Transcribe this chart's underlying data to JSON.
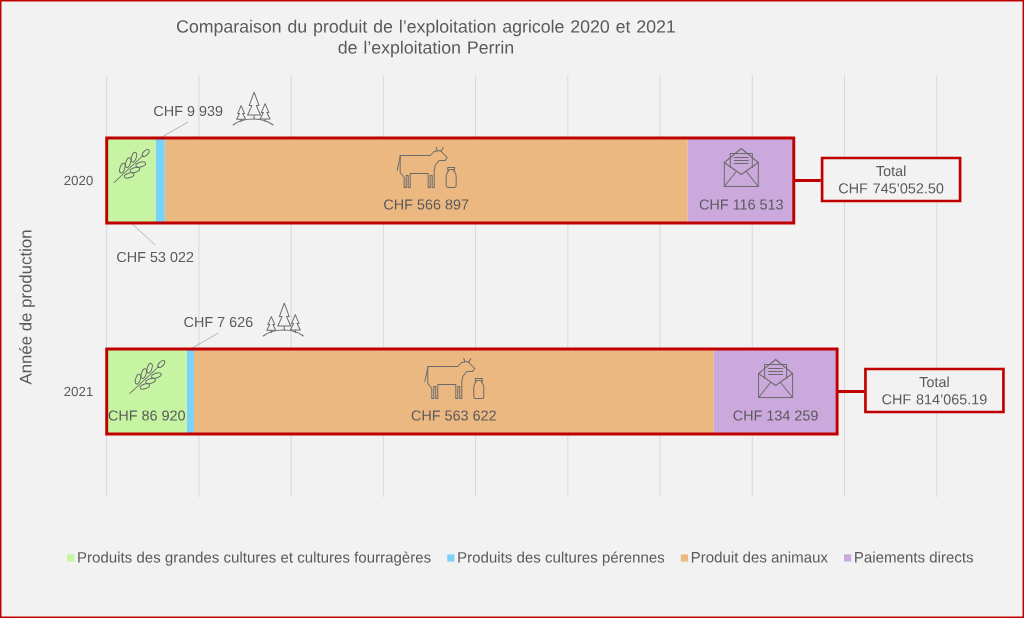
{
  "chart_data": {
    "type": "bar",
    "orientation": "horizontal",
    "stacked": true,
    "title": "Comparaison du produit de l’exploitation agricole 2020 et 2021\nde l’exploitation Perrin",
    "ylabel": "Année de production",
    "categories": [
      "2020",
      "2021"
    ],
    "series": [
      {
        "name": "Produits des grandes cultures et cultures fourragères",
        "color": "#c6f4a2",
        "values": [
          53022,
          86920
        ],
        "value_labels": [
          "CHF 53 022",
          "CHF 86 920"
        ]
      },
      {
        "name": "Produits des cultures pérennes",
        "color": "#79d3f9",
        "values": [
          9939,
          7626
        ],
        "value_labels": [
          "CHF 9 939",
          "CHF 7 626"
        ]
      },
      {
        "name": "Produit des animaux",
        "color": "#ecb882",
        "values": [
          566897,
          563622
        ],
        "value_labels": [
          "CHF 566 897",
          "CHF 563 622"
        ]
      },
      {
        "name": "Paiements directs",
        "color": "#cca9dc",
        "values": [
          116513,
          134259
        ],
        "value_labels": [
          "CHF 116 513",
          "CHF 134 259"
        ]
      }
    ],
    "annotations": [
      {
        "text": "Total\nCHF 745’052.50",
        "x": 745000,
        "y": "2020"
      },
      {
        "text": "Total\nCHF 814’065.19",
        "x": 792000,
        "y": "2021"
      }
    ],
    "xlim": [
      0,
      900000
    ],
    "xticks": [
      {
        "value": 0,
        "label": null
      },
      {
        "value": 100000,
        "label": null
      },
      {
        "value": 200000,
        "label": null
      },
      {
        "value": 300000,
        "label": null
      },
      {
        "value": 400000,
        "label": null
      },
      {
        "value": 500000,
        "label": null
      },
      {
        "value": 600000,
        "label": null
      },
      {
        "value": 700000,
        "label": null
      },
      {
        "value": 800000,
        "label": null
      },
      {
        "value": 900000,
        "label": null
      }
    ],
    "grid": "x",
    "legend": "bottom",
    "tick_labels": "y"
  }
}
